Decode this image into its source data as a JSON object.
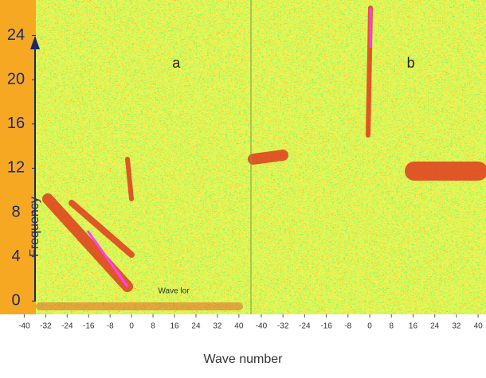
{
  "chart_data": [
    {
      "type": "heatmap",
      "title": "a",
      "ylabel": "Frequency",
      "xlabel": "Wave number",
      "annotation": "Wave lor",
      "xlim": [
        -42.5,
        44.5
      ],
      "xticks": [
        -40,
        -32,
        -24,
        -16,
        -8,
        0,
        8,
        16,
        24,
        32,
        40
      ],
      "ylim": [
        -1.2,
        27.2
      ],
      "yticks": [
        0,
        4,
        8,
        12,
        16,
        20,
        24
      ]
    },
    {
      "type": "heatmap",
      "title": "b",
      "xlim": [
        -43.8,
        42.9
      ],
      "xticks": [
        -40,
        -32,
        -24,
        -16,
        -8,
        0,
        8,
        16,
        24,
        32,
        40
      ]
    }
  ]
}
